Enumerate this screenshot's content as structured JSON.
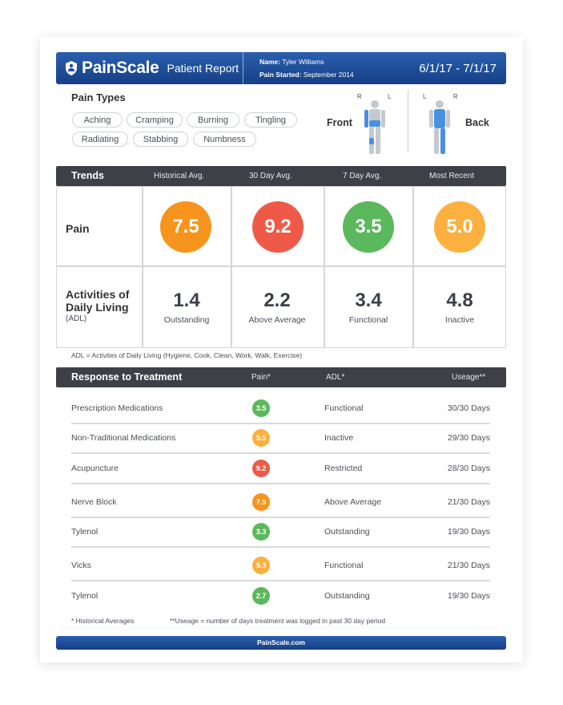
{
  "header": {
    "brand": "PainScale",
    "subtitle": "Patient Report",
    "name_label": "Name:",
    "name_value": "Tyler Williams",
    "started_label": "Pain Started:",
    "started_value": "September 2014",
    "date_range": "6/1/17 - 7/1/17"
  },
  "pain_types": {
    "title": "Pain Types",
    "chips": [
      "Aching",
      "Cramping",
      "Burning",
      "Tingling",
      "Radiating",
      "Stabbing",
      "Numbness"
    ]
  },
  "body_map": {
    "front_label": "Front",
    "back_label": "Back",
    "front_r": "R",
    "front_l": "L",
    "back_l": "L",
    "back_r": "R",
    "highlight_color": "#4a90e2"
  },
  "trends": {
    "title": "Trends",
    "columns": [
      "Historical Avg.",
      "30 Day Avg.",
      "7 Day Avg.",
      "Most Recent"
    ],
    "pain_label": "Pain",
    "pain_values": [
      "7.5",
      "9.2",
      "3.5",
      "5.0"
    ],
    "pain_colors": [
      "#f7941d",
      "#ef5a48",
      "#5cb85c",
      "#fbb040"
    ],
    "adl_label_1": "Activities of",
    "adl_label_2": "Daily Living",
    "adl_abbr": "(ADL)",
    "adl_values": [
      "1.4",
      "2.2",
      "3.4",
      "4.8"
    ],
    "adl_words": [
      "Outstanding",
      "Above Average",
      "Functional",
      "Inactive"
    ],
    "note": "ADL = Activites of Daily Living (Hygiene, Cook, Clean, Work, Walk, Exercise)"
  },
  "response": {
    "title": "Response to Treatment",
    "col_pain": "Pain*",
    "col_adl": "ADL*",
    "col_usage": "Useage**",
    "rows": [
      {
        "name": "Prescription Medications",
        "pain": "3.5",
        "color": "#5cb85c",
        "adl": "Functional",
        "usage": "30/30 Days"
      },
      {
        "name": "Non-Traditional Medications",
        "pain": "5.5",
        "color": "#fbb040",
        "adl": "Inactive",
        "usage": "29/30 Days"
      },
      {
        "name": "Acupuncture",
        "pain": "9.2",
        "color": "#ef5a48",
        "adl": "Restricted",
        "usage": "28/30 Days"
      },
      {
        "name": "Nerve Block",
        "pain": "7.5",
        "color": "#f7941d",
        "adl": "Above Average",
        "usage": "21/30 Days"
      },
      {
        "name": "Tylenol",
        "pain": "3.3",
        "color": "#5cb85c",
        "adl": "Outstanding",
        "usage": "19/30 Days"
      },
      {
        "name": "Vicks",
        "pain": "5.3",
        "color": "#fbb040",
        "adl": "Functional",
        "usage": "21/30 Days"
      },
      {
        "name": "Tylenol",
        "pain": "2.7",
        "color": "#5cb85c",
        "adl": "Outstanding",
        "usage": "19/30 Days"
      }
    ],
    "footnote_1": "* Historical Averages",
    "footnote_2": "**Useage = number of days treatment was logged in past 30 day period"
  },
  "footer": {
    "site": "PainScale.com"
  }
}
